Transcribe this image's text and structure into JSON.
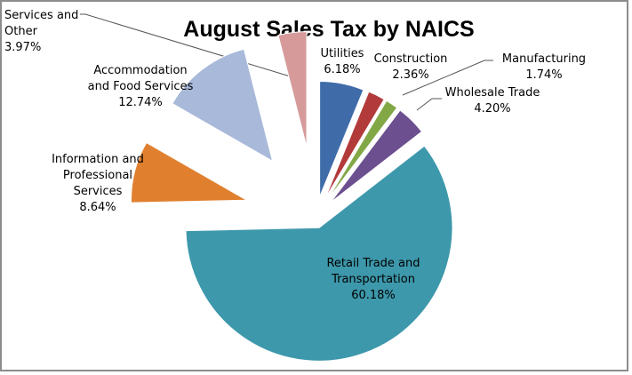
{
  "chart_data": {
    "type": "pie",
    "title": "August Sales Tax by NAICS",
    "exploded": true,
    "slices": [
      {
        "name": "Utilities",
        "value": 6.18,
        "label": "6.18%",
        "color": "#3f6ca9"
      },
      {
        "name": "Construction",
        "value": 2.36,
        "label": "2.36%",
        "color": "#b23a3a"
      },
      {
        "name": "Manufacturing",
        "value": 1.74,
        "label": "1.74%",
        "color": "#82a846"
      },
      {
        "name": "Wholesale Trade",
        "value": 4.2,
        "label": "4.20%",
        "color": "#6b4f8f"
      },
      {
        "name": "Retail Trade and Transportation",
        "value": 60.18,
        "label": "60.18%",
        "color": "#3d98ab"
      },
      {
        "name": "Information and Professional Services",
        "value": 8.64,
        "label": "8.64%",
        "color": "#e0802f"
      },
      {
        "name": "Accommodation and Food Services",
        "value": 12.74,
        "label": "12.74%",
        "color": "#a9b9da"
      },
      {
        "name": "Services and Other",
        "value": 3.97,
        "label": "3.97%",
        "color": "#d69a9a"
      }
    ]
  }
}
